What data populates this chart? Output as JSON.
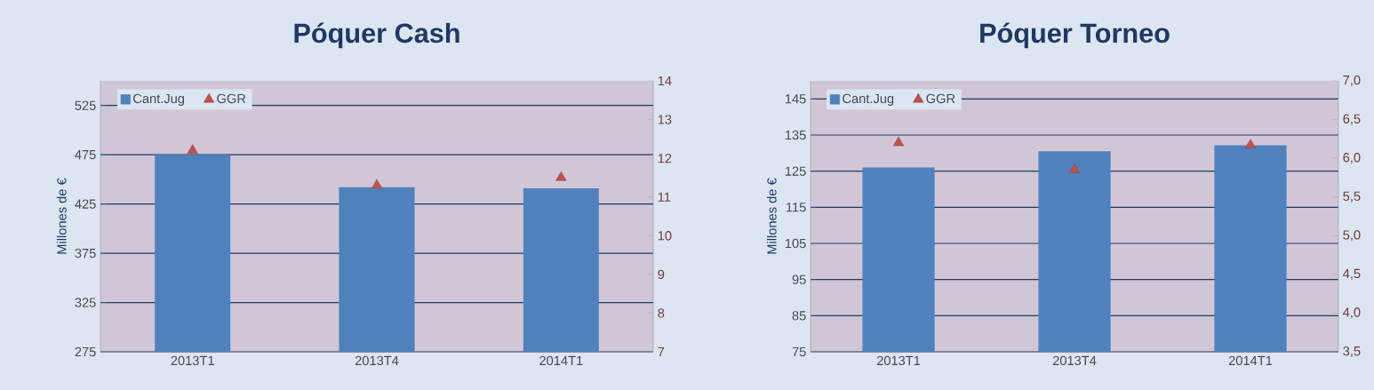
{
  "chart_data": [
    {
      "type": "bar",
      "title": "Póquer Cash",
      "ylabel": "Millones de €",
      "categories": [
        "2013T1",
        "2013T4",
        "2014T1"
      ],
      "series": [
        {
          "name": "Cant.Jug",
          "color": "#4f81bd",
          "values": [
            475,
            442,
            441
          ]
        },
        {
          "name": "GGR",
          "type": "scatter",
          "axis": "y2",
          "marker": "triangle",
          "color": "#c0504d",
          "values": [
            12.2,
            11.3,
            11.5
          ]
        }
      ],
      "ylim": [
        275,
        550
      ],
      "yticks": [
        275,
        325,
        375,
        425,
        475,
        525
      ],
      "y2lim": [
        7,
        14
      ],
      "y2ticks": [
        7,
        8,
        9,
        10,
        11,
        12,
        13,
        14
      ],
      "grid": "y",
      "legend": "top left"
    },
    {
      "type": "bar",
      "title": "Póquer Torneo",
      "ylabel": "Millones de €",
      "categories": [
        "2013T1",
        "2013T4",
        "2014T1"
      ],
      "series": [
        {
          "name": "Cant.Jug",
          "color": "#4f81bd",
          "values": [
            126,
            130.5,
            132.2
          ]
        },
        {
          "name": "GGR",
          "type": "scatter",
          "axis": "y2",
          "marker": "triangle",
          "color": "#c0504d",
          "values": [
            6.2,
            5.85,
            6.17
          ]
        }
      ],
      "ylim": [
        75,
        150
      ],
      "yticks": [
        75,
        85,
        95,
        105,
        115,
        125,
        135,
        145
      ],
      "y2lim": [
        3.5,
        7.0
      ],
      "y2ticks": [
        {
          "value": 3.5,
          "label": "3,5"
        },
        {
          "value": 4.0,
          "label": "4,0"
        },
        {
          "value": 4.5,
          "label": "4,5"
        },
        {
          "value": 5.0,
          "label": "5,0"
        },
        {
          "value": 5.5,
          "label": "5,5"
        },
        {
          "value": 6.0,
          "label": "6,0"
        },
        {
          "value": 6.5,
          "label": "6,5"
        },
        {
          "value": 7.0,
          "label": "7,0"
        }
      ],
      "grid": "y",
      "legend": "top left"
    }
  ]
}
